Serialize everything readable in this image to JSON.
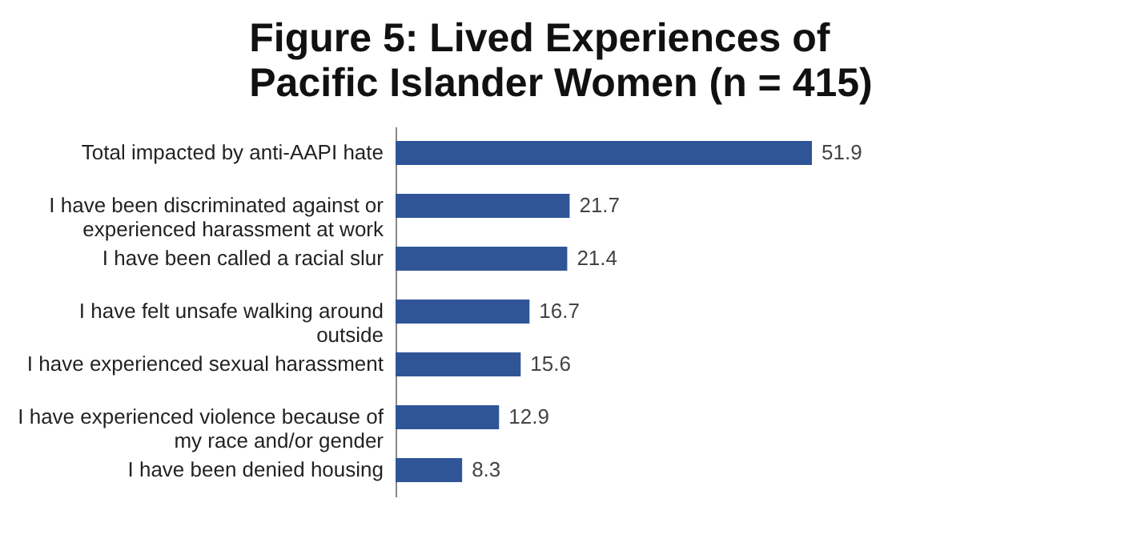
{
  "chart_data": {
    "type": "bar",
    "orientation": "horizontal",
    "title": "Figure 5: Lived Experiences of Pacific Islander Women (n = 415)",
    "categories": [
      "Total impacted by anti-AAPI hate",
      "I have been discriminated against or experienced harassment at work",
      "I have been called a racial slur",
      "I have felt unsafe walking around outside",
      "I have experienced sexual harassment",
      "I have experienced violence because of my race and/or gender",
      "I have been denied housing"
    ],
    "values": [
      51.9,
      21.7,
      21.4,
      16.7,
      15.6,
      12.9,
      8.3
    ],
    "color": "#2f5597",
    "data_labels": true,
    "grid": false
  }
}
